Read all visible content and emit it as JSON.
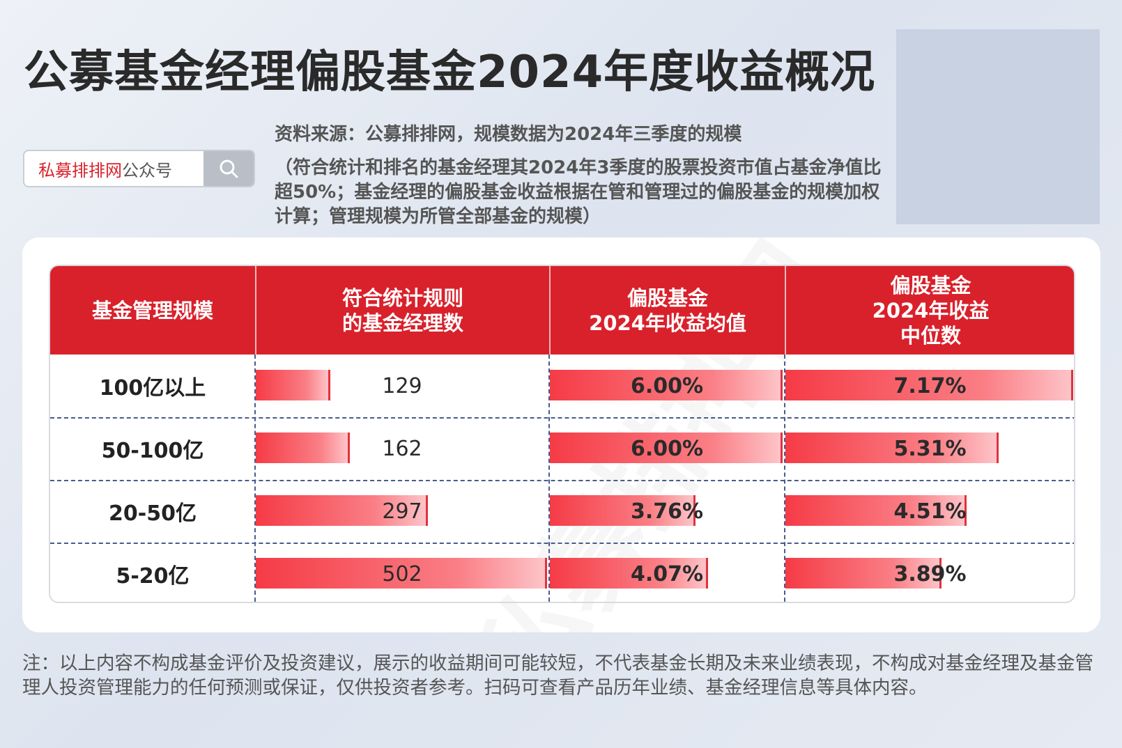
{
  "header": {
    "title": "公募基金经理偏股基金2024年度收益概况",
    "source": "资料来源：公募排排网，规模数据为2024年三季度的规模",
    "notes": "（符合统计和排名的基金经理其2024年3季度的股票投资市值占基金净值比超50%；基金经理的偏股基金收益根据在管和管理过的偏股基金的规模加权计算；管理规模为所管全部基金的规模）"
  },
  "search": {
    "brand": "私募排排网",
    "suffix": "公众号",
    "icon": "search-icon"
  },
  "colors": {
    "header_red": "#d9212b",
    "bar_start": "#f53b46",
    "bar_end": "#fdc4c8"
  },
  "chart_data": {
    "type": "table",
    "columns": [
      "基金管理规模",
      "符合统计规则\n的基金经理数",
      "偏股基金\n2024年收益均值",
      "偏股基金\n2024年收益\n中位数"
    ],
    "categories": [
      "100亿以上",
      "50-100亿",
      "20-50亿",
      "5-20亿"
    ],
    "series": [
      {
        "name": "符合统计规则的基金经理数",
        "values": [
          129,
          162,
          297,
          502
        ],
        "labels": [
          "129",
          "162",
          "297",
          "502"
        ],
        "max": 502
      },
      {
        "name": "偏股基金2024年收益均值",
        "values": [
          6.0,
          6.0,
          3.76,
          4.07
        ],
        "labels": [
          "6.00%",
          "6.00%",
          "3.76%",
          "4.07%"
        ],
        "max": 6.0
      },
      {
        "name": "偏股基金2024年收益中位数",
        "values": [
          7.17,
          5.31,
          4.51,
          3.89
        ],
        "labels": [
          "7.17%",
          "5.31%",
          "4.51%",
          "3.89%"
        ],
        "max": 7.17
      }
    ]
  },
  "footer": {
    "note": "注：以上内容不构成基金评价及投资建议，展示的收益期间可能较短，不代表基金长期及未来业绩表现，不构成对基金经理及基金管理人投资管理能力的任何预测或保证，仅供投资者参考。扫码可查看产品历年业绩、基金经理信息等具体内容。"
  }
}
